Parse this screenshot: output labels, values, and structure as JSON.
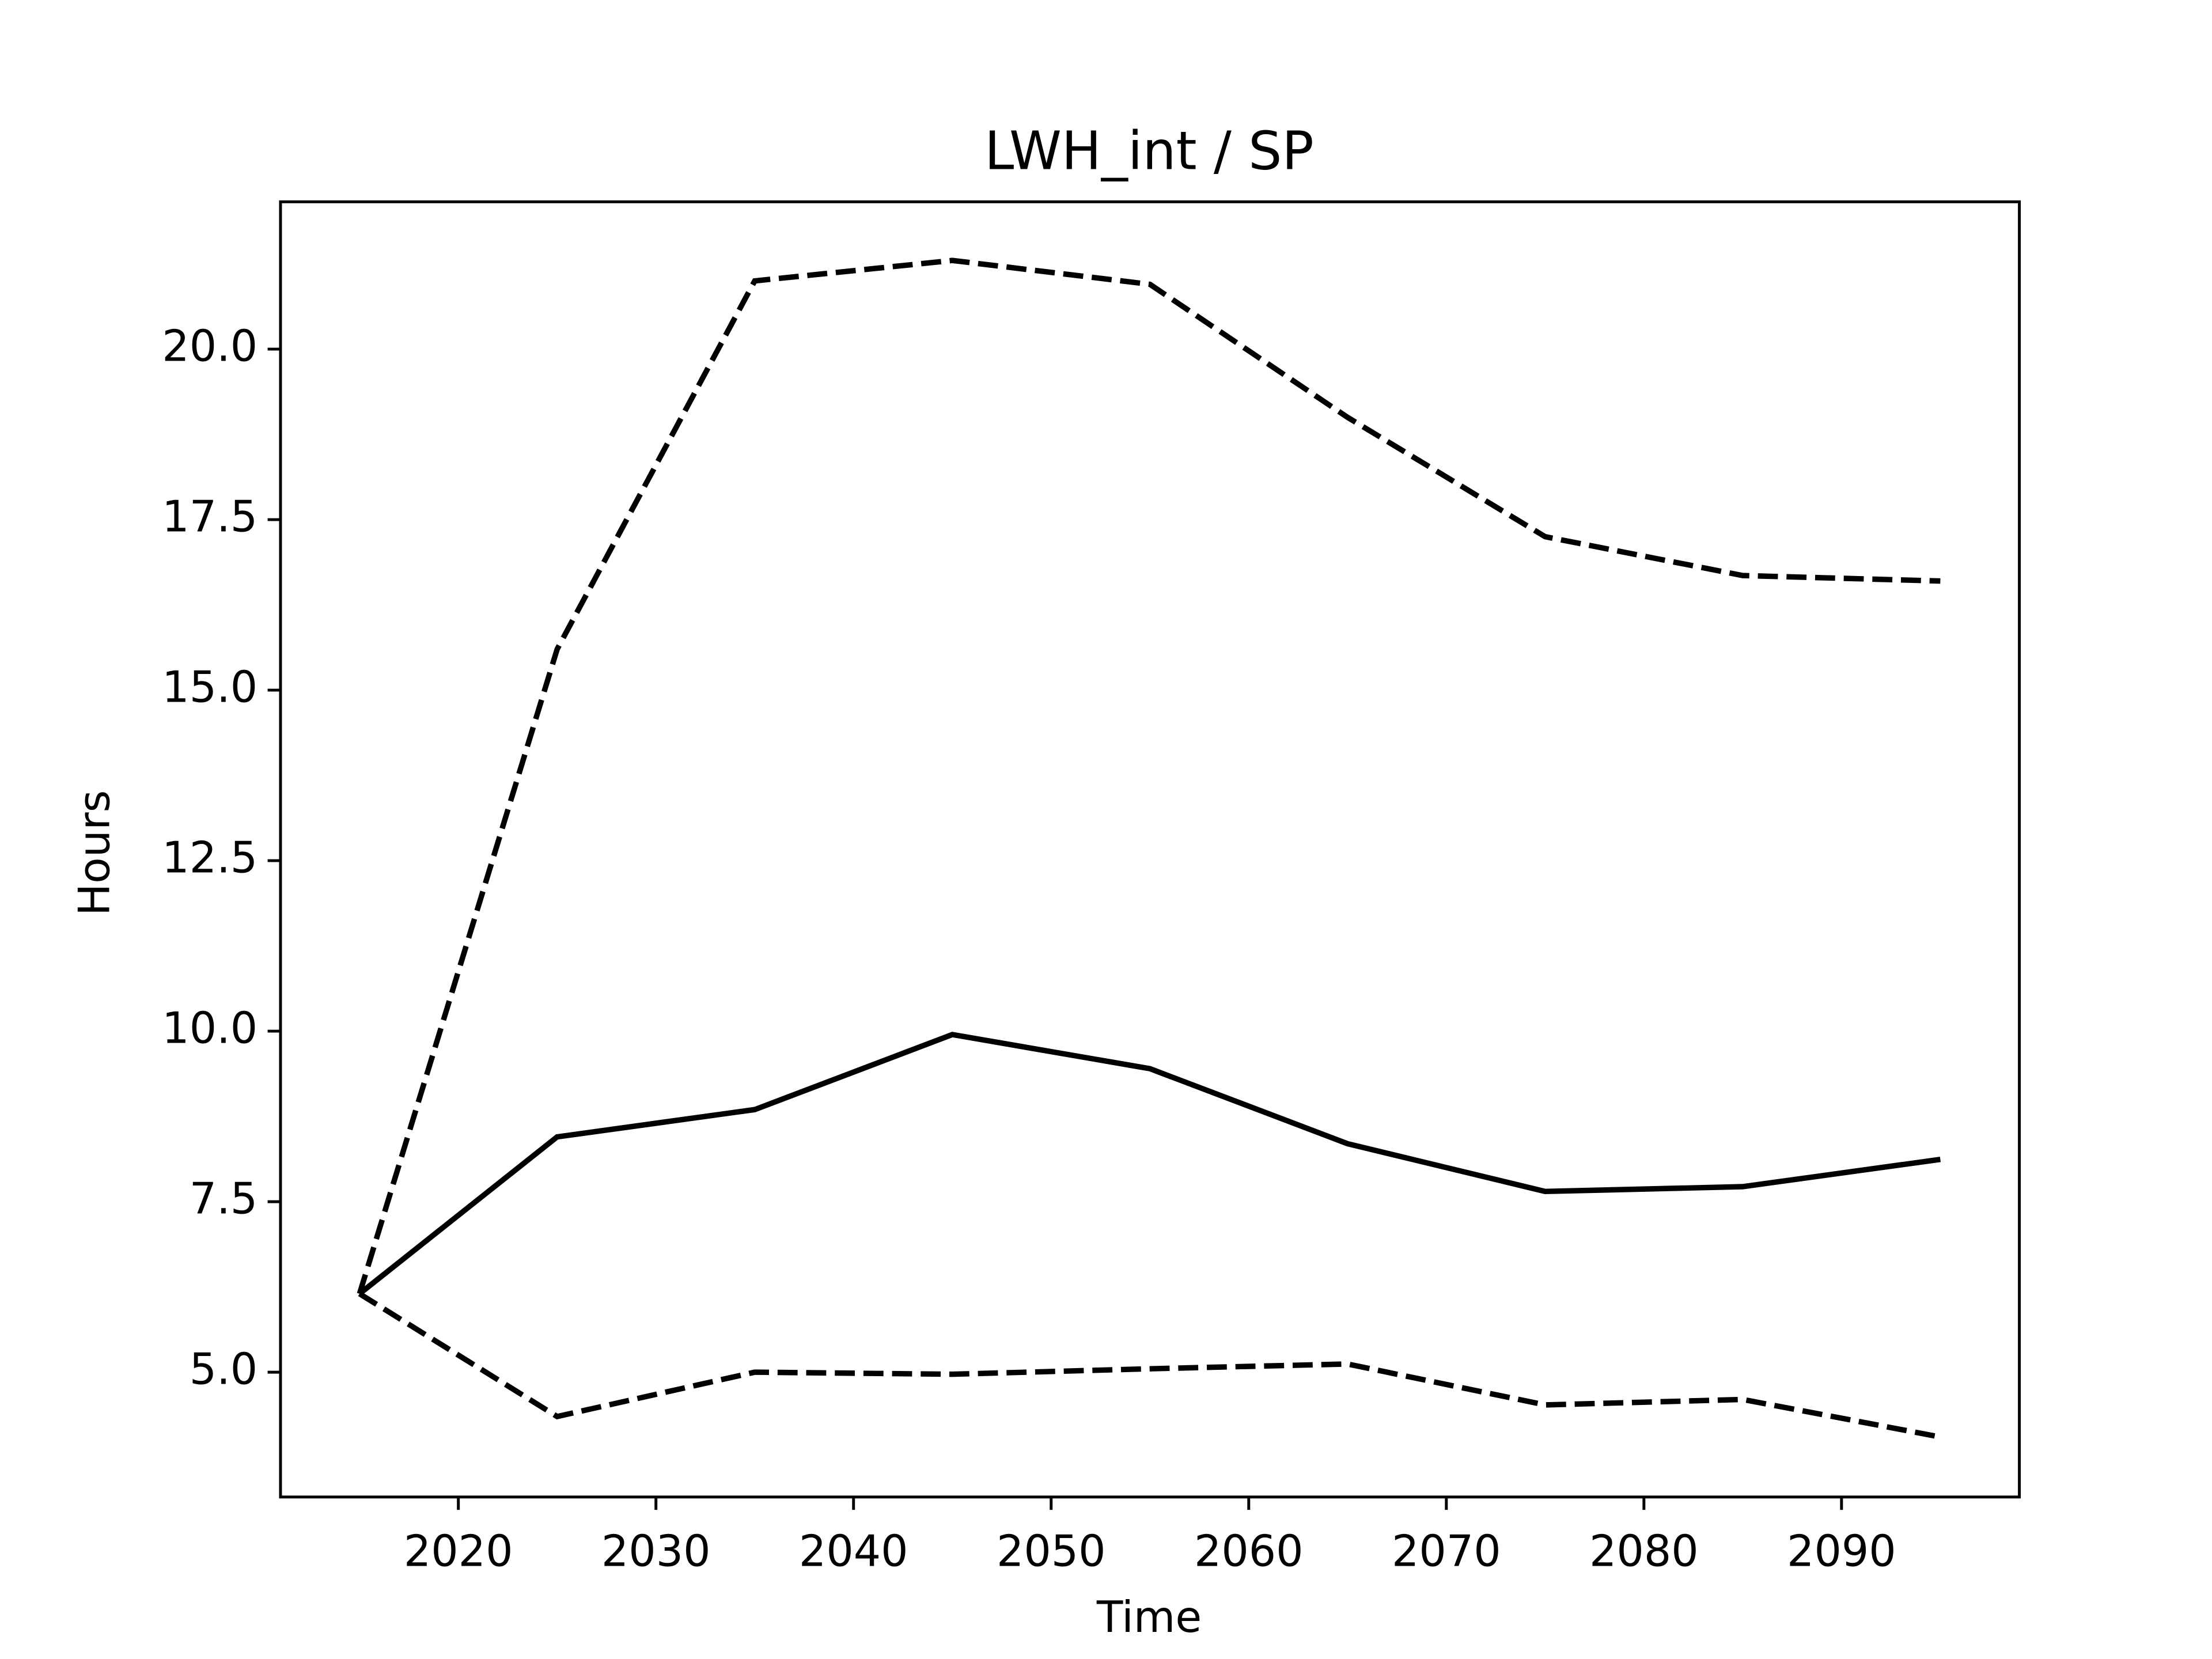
{
  "chart_data": {
    "type": "line",
    "title": "LWH_int / SP",
    "xlabel": "Time",
    "ylabel": "Hours",
    "x": [
      2015,
      2025,
      2035,
      2045,
      2055,
      2065,
      2075,
      2085,
      2095
    ],
    "series": [
      {
        "color": "#000000",
        "linestyle": "solid",
        "values": [
          6.15,
          8.45,
          8.85,
          9.95,
          9.45,
          8.35,
          7.65,
          7.72,
          8.12
        ]
      },
      {
        "color": "#000000",
        "linestyle": "dashed",
        "values": [
          6.15,
          15.6,
          21.0,
          21.3,
          20.95,
          19.0,
          17.25,
          16.68,
          16.6
        ]
      },
      {
        "color": "#000000",
        "linestyle": "dashed",
        "values": [
          6.15,
          4.35,
          5.0,
          4.97,
          5.05,
          5.12,
          4.52,
          4.6,
          4.05
        ]
      }
    ],
    "xlim": [
      2011,
      2099
    ],
    "ylim": [
      3.17,
      22.16
    ],
    "xticks": [
      2020,
      2030,
      2040,
      2050,
      2060,
      2070,
      2080,
      2090
    ],
    "yticks": [
      {
        "value": 5,
        "label": "5.0"
      },
      {
        "value": 7.5,
        "label": "7.5"
      },
      {
        "value": 10,
        "label": "10.0"
      },
      {
        "value": 12.5,
        "label": "12.5"
      },
      {
        "value": 15,
        "label": "15.0"
      },
      {
        "value": 17.5,
        "label": "17.5"
      },
      {
        "value": 20,
        "label": "20.0"
      }
    ],
    "grid": false
  }
}
